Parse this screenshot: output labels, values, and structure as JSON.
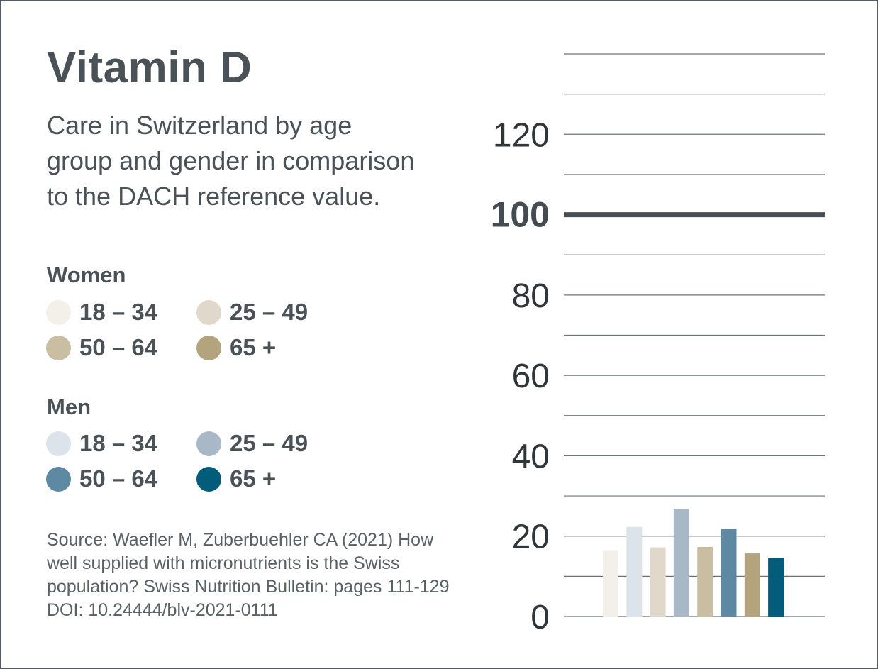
{
  "title": "Vitamin D",
  "subtitle": "Care in Switzerland by age group and gender in comparison to the DACH reference value.",
  "legend": {
    "women": {
      "heading": "Women",
      "items": [
        {
          "label": "18 – 34",
          "color": "#f3f0ea"
        },
        {
          "label": "25 – 49",
          "color": "#e0d9cb"
        },
        {
          "label": "50 – 64",
          "color": "#c9bda2"
        },
        {
          "label": "65 +",
          "color": "#b3a47e"
        }
      ]
    },
    "men": {
      "heading": "Men",
      "items": [
        {
          "label": "18 – 34",
          "color": "#dde3ea"
        },
        {
          "label": "25 – 49",
          "color": "#a8b8c6"
        },
        {
          "label": "50 – 64",
          "color": "#5e89a3"
        },
        {
          "label": "65 +",
          "color": "#035c7a"
        }
      ]
    }
  },
  "source": "Source: Waefler M, Zuberbuehler CA (2021) How well supplied with micronutrients is the Swiss population? Swiss Nutrition Bulletin: pages 111-129 DOI: 10.24444/blv-2021-0111",
  "chart_data": {
    "type": "bar",
    "title": "Vitamin D",
    "ylim": [
      0,
      140
    ],
    "yticks": [
      0,
      20,
      40,
      60,
      80,
      100,
      120
    ],
    "reference_value": 100,
    "grid_step": 10,
    "series": [
      {
        "name": "Women 18 – 34",
        "value": 16.5,
        "color": "#f3f0ea"
      },
      {
        "name": "Men 18 – 34",
        "value": 22.3,
        "color": "#dde3ea"
      },
      {
        "name": "Women 25 – 49",
        "value": 17.2,
        "color": "#e0d9cb"
      },
      {
        "name": "Men 25 – 49",
        "value": 26.8,
        "color": "#a8b8c6"
      },
      {
        "name": "Women 50 – 64",
        "value": 17.3,
        "color": "#c9bda2"
      },
      {
        "name": "Men 50 – 64",
        "value": 21.8,
        "color": "#5e89a3"
      },
      {
        "name": "Women 65 +",
        "value": 15.7,
        "color": "#b3a47e"
      },
      {
        "name": "Men 65 +",
        "value": 14.6,
        "color": "#035c7a"
      }
    ]
  }
}
